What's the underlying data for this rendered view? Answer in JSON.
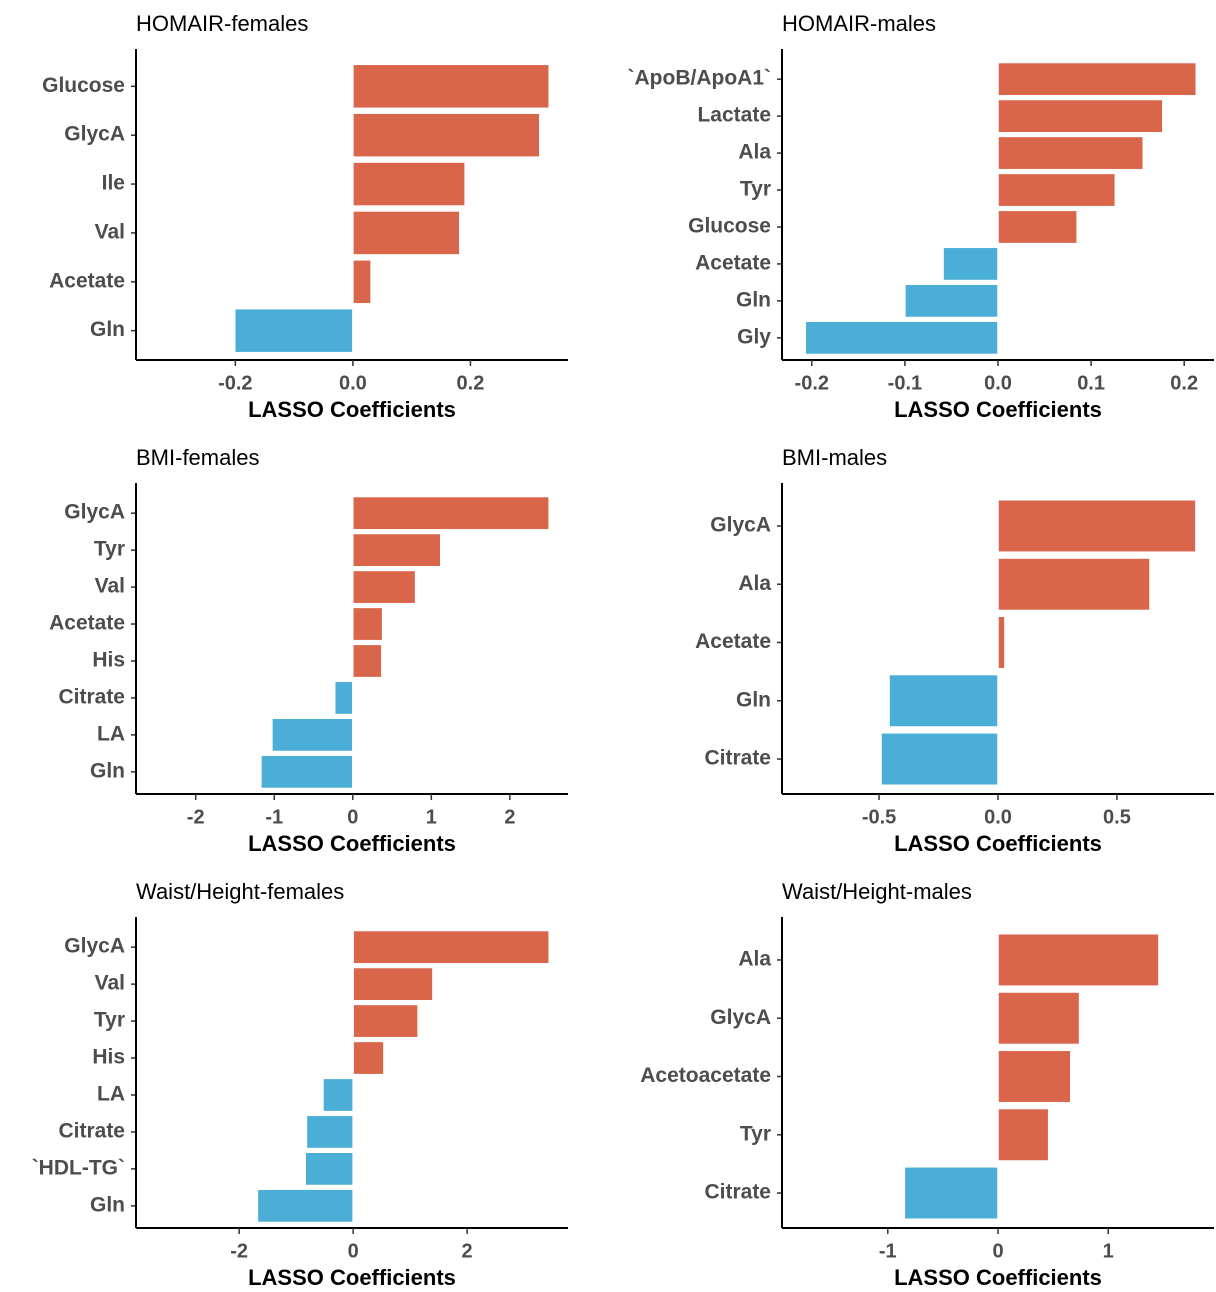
{
  "chart_data": [
    {
      "type": "bar",
      "orientation": "horizontal",
      "title": "HOMAIR-females",
      "xlabel": "LASSO Coefficients",
      "categories": [
        "Glucose",
        "GlycA",
        "Ile",
        "Val",
        "Acetate",
        "Gln"
      ],
      "values": [
        0.334,
        0.318,
        0.191,
        0.182,
        0.031,
        -0.201
      ],
      "xlim": [
        -0.369,
        0.366
      ],
      "xticks": [
        -0.2,
        {
          "value": 0,
          "label": "0.0"
        },
        0.2
      ],
      "positive_color": "#d9654a",
      "negative_color": "#4baed6"
    },
    {
      "type": "bar",
      "orientation": "horizontal",
      "title": "HOMAIR-males",
      "xlabel": "LASSO Coefficients",
      "categories": [
        "`ApoB/ApoA1`",
        "Lactate",
        "Ala",
        "Tyr",
        "Glucose",
        "Acetate",
        "Gln",
        "Gly"
      ],
      "values": [
        0.213,
        0.177,
        0.156,
        0.126,
        0.085,
        -0.059,
        -0.1,
        -0.207
      ],
      "xlim": [
        -0.232,
        0.232
      ],
      "xticks": [
        -0.2,
        -0.1,
        {
          "value": 0,
          "label": "0.0"
        },
        0.1,
        0.2
      ],
      "positive_color": "#d9654a",
      "negative_color": "#4baed6"
    },
    {
      "type": "bar",
      "orientation": "horizontal",
      "title": "BMI-females",
      "xlabel": "LASSO Coefficients",
      "categories": [
        "GlycA",
        "Tyr",
        "Val",
        "Acetate",
        "His",
        "Citrate",
        "LA",
        "Gln"
      ],
      "values": [
        2.5,
        1.12,
        0.8,
        0.38,
        0.37,
        -0.23,
        -1.03,
        -1.17
      ],
      "xlim": [
        -2.76,
        2.74
      ],
      "xticks": [
        -2,
        -1,
        0,
        1,
        2
      ],
      "positive_color": "#d9654a",
      "negative_color": "#4baed6"
    },
    {
      "type": "bar",
      "orientation": "horizontal",
      "title": "BMI-males",
      "xlabel": "LASSO Coefficients",
      "categories": [
        "GlycA",
        "Ala",
        "Acetate",
        "Gln",
        "Citrate"
      ],
      "values": [
        0.832,
        0.639,
        0.029,
        -0.458,
        -0.492
      ],
      "xlim": [
        -0.908,
        0.908
      ],
      "xticks": [
        -0.5,
        {
          "value": 0,
          "label": "0.0"
        },
        0.5
      ],
      "positive_color": "#d9654a",
      "negative_color": "#4baed6"
    },
    {
      "type": "bar",
      "orientation": "horizontal",
      "title": "Waist/Height-females",
      "xlabel": "LASSO Coefficients",
      "categories": [
        "GlycA",
        "Val",
        "Tyr",
        "His",
        "LA",
        "Citrate",
        "`HDL-TG`",
        "Gln"
      ],
      "values": [
        3.44,
        1.4,
        1.14,
        0.54,
        -0.53,
        -0.82,
        -0.84,
        -1.68
      ],
      "xlim": [
        -3.81,
        3.77
      ],
      "xticks": [
        -2,
        0,
        2
      ],
      "positive_color": "#d9654a",
      "negative_color": "#4baed6"
    },
    {
      "type": "bar",
      "orientation": "horizontal",
      "title": "Waist/Height-males",
      "xlabel": "LASSO Coefficients",
      "categories": [
        "Ala",
        "GlycA",
        "Acetoacetate",
        "Tyr",
        "Citrate"
      ],
      "values": [
        1.46,
        0.74,
        0.66,
        0.46,
        -0.85
      ],
      "xlim": [
        -1.96,
        1.96
      ],
      "xticks": [
        -1,
        0,
        1
      ],
      "positive_color": "#d9654a",
      "negative_color": "#4baed6"
    }
  ]
}
